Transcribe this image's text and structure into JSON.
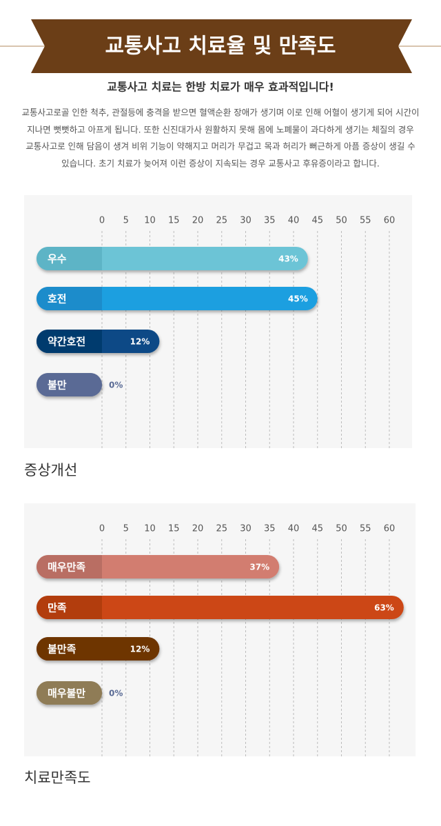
{
  "header": {
    "title": "교통사고 치료율 및 만족도",
    "subtitle": "교통사고 치료는 한방 치료가 매우 효과적입니다!"
  },
  "paragraph": [
    "교통사고로골 인한 척추, 관절등에 충격을 받으면 혈액순환 장애가 생기며 이로 인해 어혈이 생기게 되어 시간이",
    "지나면 뻣뻣하고 아프게 됩니다. 또한 신진대가사 원활하지 못해 몸에 노폐물이 과다하게 생기는 체질의 경우",
    "교통사고로 인해 담음이 생겨 비위 기능이 약해지고 머리가 무겁고 목과 허리가 뻐근하게 아픔 증상이 생길 수",
    "있습니다. 초기 치료가 늦어져 이런 증상이 지속되는 경우 교통사고 후유증이라고 합니다."
  ],
  "chart_data": [
    {
      "type": "bar",
      "title": "증상개선",
      "categories": [
        "우수",
        "호전",
        "약간호전",
        "불만"
      ],
      "values": [
        43,
        45,
        12,
        0
      ],
      "value_labels": [
        "43%",
        "45%",
        "12%",
        "0%"
      ],
      "colors": [
        "#6cc4d6",
        "#1e9fe0",
        "#0a4a86",
        "#5a6b95"
      ],
      "label_colors": [
        "#5db4c6",
        "#1a8ccb",
        "#003a6e",
        "#5a6b95"
      ],
      "xlim": [
        0,
        60
      ],
      "xticks": [
        0,
        5,
        10,
        15,
        20,
        25,
        30,
        35,
        40,
        45,
        50,
        55,
        60
      ],
      "grid": true
    },
    {
      "type": "bar",
      "title": "치료만족도",
      "categories": [
        "매우만족",
        "만족",
        "불만족",
        "매우불만"
      ],
      "values": [
        37,
        63,
        12,
        0
      ],
      "value_labels": [
        "37%",
        "63%",
        "12%",
        "0%"
      ],
      "colors": [
        "#d27d70",
        "#cc4716",
        "#6e3406",
        "#8f7b56"
      ],
      "label_colors": [
        "#b96e63",
        "#b23c10",
        "#6e3406",
        "#8f7b56"
      ],
      "xlim": [
        0,
        60
      ],
      "xticks": [
        0,
        5,
        10,
        15,
        20,
        25,
        30,
        35,
        40,
        45,
        50,
        55,
        60
      ],
      "grid": true
    }
  ]
}
